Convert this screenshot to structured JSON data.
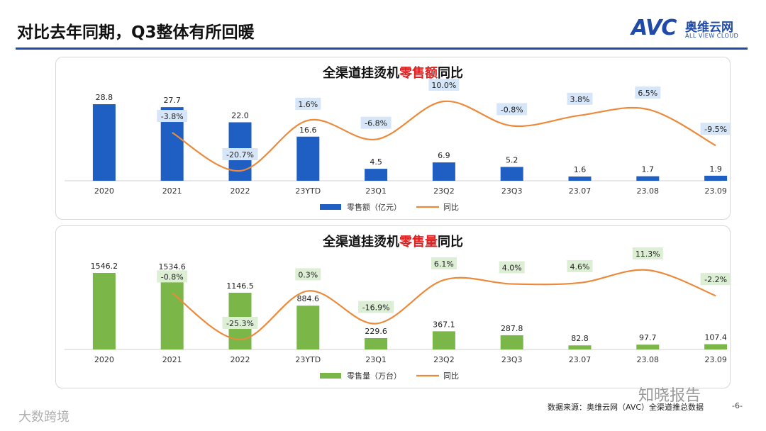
{
  "header": {
    "title": "对比去年同期，Q3整体有所回暖",
    "logo_mark": "AVC",
    "logo_cn": "奥维云网",
    "logo_en": "ALL VIEW CLOUD"
  },
  "chart_data": [
    {
      "type": "bar",
      "title_prefix": "全渠道挂烫机",
      "title_highlight": "零售额",
      "title_suffix": "同比",
      "categories": [
        "2020",
        "2021",
        "2022",
        "23YTD",
        "23Q1",
        "23Q2",
        "23Q3",
        "23.07",
        "23.08",
        "23.09"
      ],
      "series": [
        {
          "name": "零售额（亿元）",
          "kind": "bar",
          "color": "#1f5fc4",
          "values": [
            28.8,
            27.7,
            22.0,
            16.6,
            4.5,
            6.9,
            5.2,
            1.6,
            1.7,
            1.9
          ]
        },
        {
          "name": "同比",
          "kind": "line",
          "color": "#ec8a3c",
          "values": [
            null,
            -3.8,
            -20.7,
            1.6,
            -6.8,
            10.0,
            -0.8,
            3.8,
            6.5,
            -9.5
          ],
          "labels": [
            "",
            "-3.8%",
            "-20.7%",
            "1.6%",
            "-6.8%",
            "10.0%",
            "-0.8%",
            "3.8%",
            "6.5%",
            "-9.5%"
          ]
        }
      ],
      "bar_labels": [
        "28.8",
        "27.7",
        "22.0",
        "16.6",
        "4.5",
        "6.9",
        "5.2",
        "1.6",
        "1.7",
        "1.9"
      ],
      "label_bg": "#d6e6f8",
      "legend_position": "bottom"
    },
    {
      "type": "bar",
      "title_prefix": "全渠道挂烫机",
      "title_highlight": "零售量",
      "title_suffix": "同比",
      "categories": [
        "2020",
        "2021",
        "2022",
        "23YTD",
        "23Q1",
        "23Q2",
        "23Q3",
        "23.07",
        "23.08",
        "23.09"
      ],
      "series": [
        {
          "name": "零售量（万台）",
          "kind": "bar",
          "color": "#7ab648",
          "values": [
            1546.2,
            1534.6,
            1146.5,
            884.6,
            229.6,
            367.1,
            287.8,
            82.8,
            97.7,
            107.4
          ]
        },
        {
          "name": "同比",
          "kind": "line",
          "color": "#ec8a3c",
          "values": [
            null,
            -0.8,
            -25.3,
            0.3,
            -16.9,
            6.1,
            4.0,
            4.6,
            11.3,
            -2.2
          ],
          "labels": [
            "",
            "-0.8%",
            "-25.3%",
            "0.3%",
            "-16.9%",
            "6.1%",
            "4.0%",
            "4.6%",
            "11.3%",
            "-2.2%"
          ]
        }
      ],
      "bar_labels": [
        "1546.2",
        "1534.6",
        "1146.5",
        "884.6",
        "229.6",
        "367.1",
        "287.8",
        "82.8",
        "97.7",
        "107.4"
      ],
      "label_bg": "#dcefd4",
      "legend_position": "bottom"
    }
  ],
  "footer": {
    "source": "数据来源：奥维云网（AVC）全渠道推总数据",
    "page": "-6-",
    "watermark_right": "知晓报告",
    "watermark_left": "大数跨境"
  }
}
